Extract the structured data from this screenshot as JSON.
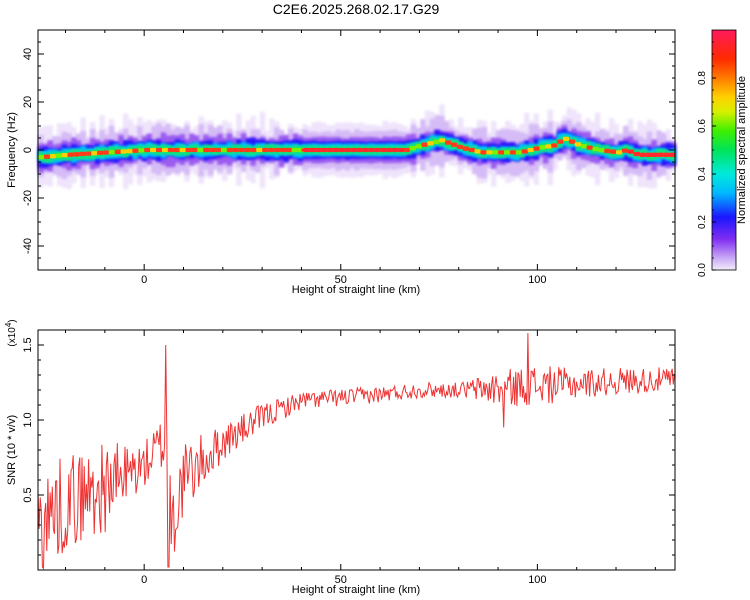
{
  "title": "C2E6.2025.268.02.17.G29",
  "chart_data": [
    {
      "type": "heatmap",
      "name": "spectrogram",
      "xlabel": "Height of straight line (km)",
      "ylabel": "Frequency (Hz)",
      "xlim": [
        -27,
        135
      ],
      "ylim": [
        -50,
        50
      ],
      "xticks": [
        0,
        50,
        100
      ],
      "yticks": [
        -40,
        -20,
        0,
        20,
        40
      ],
      "ytick_labels": [
        "-40",
        "-20",
        "0",
        "20",
        "40"
      ],
      "colorbar": {
        "label": "Normalized spectral amplitude",
        "ticks": [
          0.0,
          0.2,
          0.4,
          0.6,
          0.8
        ],
        "tick_labels": [
          "0.0",
          "0.2",
          "0.4",
          "0.6",
          "0.8"
        ]
      },
      "ridge": {
        "x": [
          -27,
          -20,
          -10,
          0,
          10,
          20,
          30,
          40,
          50,
          60,
          66,
          70,
          75,
          80,
          85,
          90,
          95,
          100,
          104,
          106,
          110,
          115,
          120,
          122,
          125,
          135
        ],
        "y": [
          -3,
          -2,
          -1,
          0,
          0,
          0,
          0,
          0,
          0,
          0,
          0,
          2,
          4,
          1,
          -1,
          -1,
          -1,
          1,
          2,
          5,
          2,
          0,
          -1,
          0,
          -2,
          -2
        ]
      }
    },
    {
      "type": "line",
      "name": "snr",
      "xlabel": "Height of straight line (km)",
      "ylabel": "SNR (10 * v/v)",
      "yscale_label": "(x10",
      "yscale_exp": "4",
      "xlim": [
        -27,
        135
      ],
      "ylim": [
        0,
        1.6
      ],
      "xticks": [
        0,
        50,
        100
      ],
      "yticks": [
        0.5,
        1.0,
        1.5
      ],
      "ytick_labels": [
        "0.5",
        "1.0",
        "1.5"
      ],
      "color": "#ee3333",
      "trend": {
        "x": [
          -27,
          -20,
          -10,
          0,
          5,
          6,
          7,
          10,
          20,
          30,
          40,
          50,
          60,
          70,
          80,
          90,
          100,
          110,
          120,
          135
        ],
        "y": [
          0.3,
          0.45,
          0.55,
          0.7,
          0.85,
          0.9,
          0.3,
          0.6,
          0.85,
          1.02,
          1.13,
          1.15,
          1.17,
          1.2,
          1.2,
          1.21,
          1.23,
          1.24,
          1.26,
          1.27
        ]
      },
      "noise_amp": {
        "x": [
          -27,
          -10,
          0,
          5,
          6,
          7,
          10,
          20,
          40,
          80,
          90,
          100,
          110,
          135
        ],
        "y": [
          0.35,
          0.3,
          0.15,
          0.2,
          0.5,
          0.3,
          0.25,
          0.12,
          0.06,
          0.05,
          0.12,
          0.14,
          0.1,
          0.08
        ]
      },
      "spikes": [
        {
          "x": 5.5,
          "y": 1.5
        },
        {
          "x": 6.2,
          "y": 0.02
        },
        {
          "x": 97.5,
          "y": 1.58
        },
        {
          "x": 91.5,
          "y": 0.95
        }
      ]
    }
  ]
}
